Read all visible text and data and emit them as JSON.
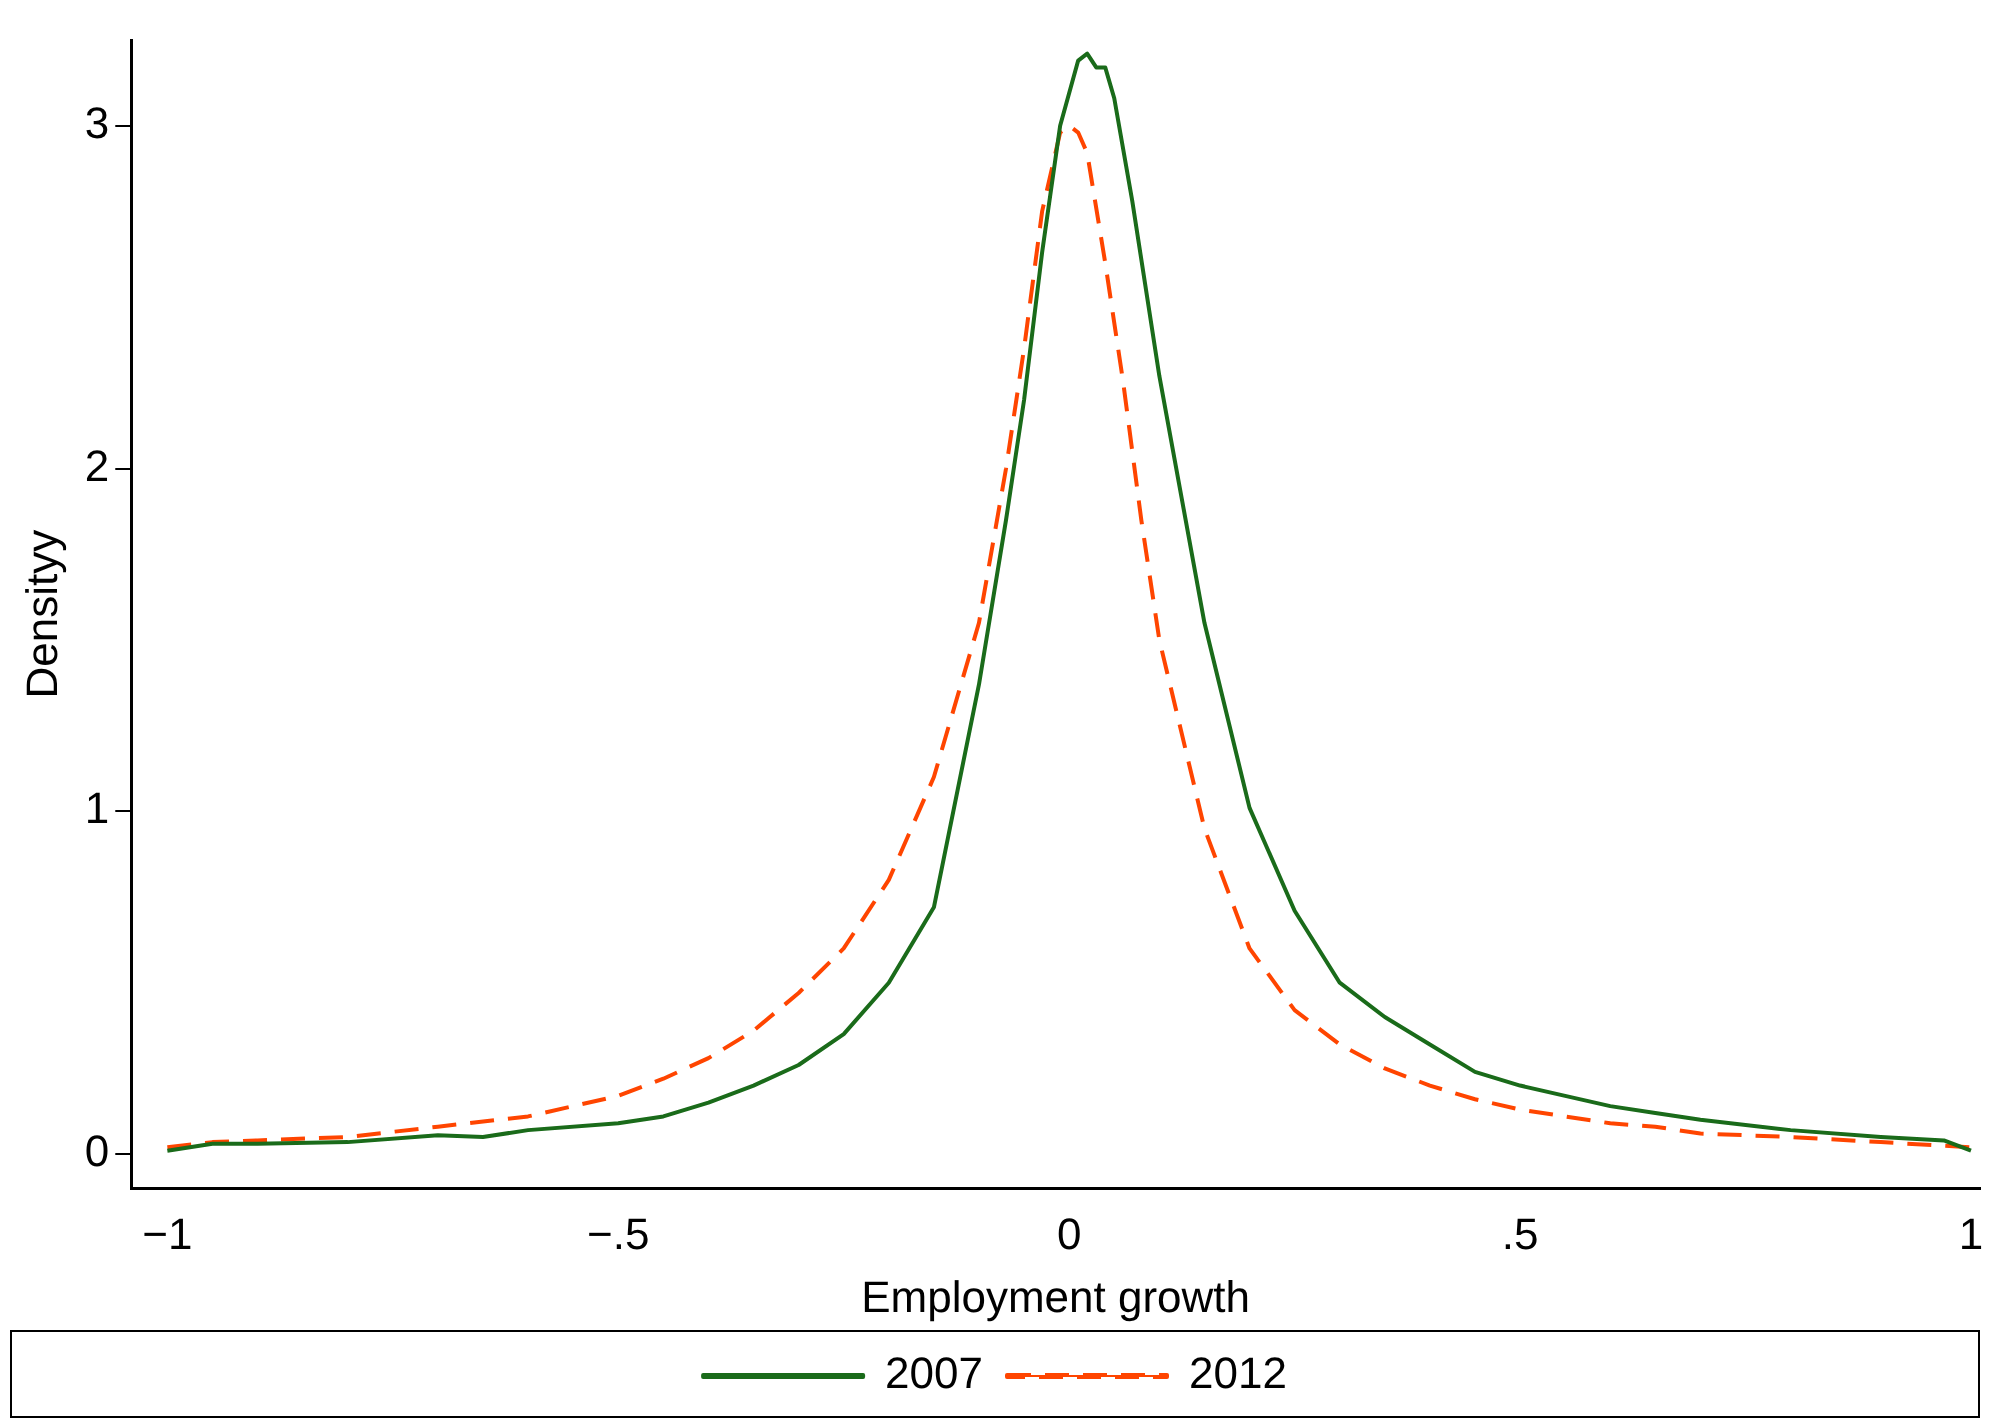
{
  "chart_data": {
    "type": "line",
    "xlabel": "Employment growth",
    "ylabel": "Densityy",
    "xlim": [
      -1.04,
      1.01
    ],
    "ylim": [
      -0.1,
      3.25
    ],
    "xticks": [
      {
        "value": -1,
        "label": "−1"
      },
      {
        "value": -0.5,
        "label": "−.5"
      },
      0,
      {
        "value": 0.5,
        "label": ".5"
      },
      1
    ],
    "yticks": [
      0,
      1,
      2,
      3
    ],
    "grid": false,
    "legend": "bottom",
    "marker": "none",
    "series": [
      {
        "name": "2007",
        "color": "#1a6b1a",
        "line_style": "solid",
        "x": [
          -1,
          -0.95,
          -0.9,
          -0.8,
          -0.7,
          -0.65,
          -0.6,
          -0.5,
          -0.45,
          -0.4,
          -0.35,
          -0.3,
          -0.25,
          -0.2,
          -0.15,
          -0.1,
          -0.07,
          -0.05,
          -0.03,
          -0.01,
          0.01,
          0.02,
          0.03,
          0.04,
          0.05,
          0.07,
          0.1,
          0.15,
          0.2,
          0.25,
          0.3,
          0.35,
          0.4,
          0.45,
          0.5,
          0.55,
          0.6,
          0.65,
          0.7,
          0.8,
          0.9,
          0.97,
          1
        ],
        "values": [
          0.01,
          0.03,
          0.03,
          0.035,
          0.055,
          0.05,
          0.07,
          0.09,
          0.11,
          0.15,
          0.2,
          0.26,
          0.35,
          0.5,
          0.72,
          1.37,
          1.85,
          2.2,
          2.63,
          3.0,
          3.19,
          3.21,
          3.17,
          3.17,
          3.08,
          2.78,
          2.27,
          1.55,
          1.01,
          0.71,
          0.5,
          0.4,
          0.32,
          0.24,
          0.2,
          0.17,
          0.14,
          0.12,
          0.1,
          0.07,
          0.05,
          0.04,
          0.01
        ]
      },
      {
        "name": "2012",
        "color": "#ff4500",
        "line_style": "dashed",
        "x": [
          -1,
          -0.95,
          -0.9,
          -0.8,
          -0.7,
          -0.6,
          -0.5,
          -0.45,
          -0.4,
          -0.35,
          -0.3,
          -0.25,
          -0.2,
          -0.15,
          -0.1,
          -0.07,
          -0.05,
          -0.03,
          -0.01,
          0,
          0.01,
          0.02,
          0.04,
          0.06,
          0.08,
          0.1,
          0.15,
          0.2,
          0.25,
          0.3,
          0.35,
          0.4,
          0.45,
          0.5,
          0.55,
          0.6,
          0.65,
          0.7,
          0.8,
          0.9,
          1
        ],
        "values": [
          0.02,
          0.035,
          0.04,
          0.05,
          0.08,
          0.11,
          0.17,
          0.22,
          0.28,
          0.36,
          0.47,
          0.6,
          0.8,
          1.1,
          1.55,
          2.0,
          2.35,
          2.75,
          2.98,
          3.0,
          2.98,
          2.92,
          2.6,
          2.25,
          1.85,
          1.5,
          0.95,
          0.6,
          0.42,
          0.32,
          0.25,
          0.2,
          0.16,
          0.13,
          0.11,
          0.09,
          0.08,
          0.06,
          0.05,
          0.035,
          0.02
        ]
      }
    ]
  }
}
